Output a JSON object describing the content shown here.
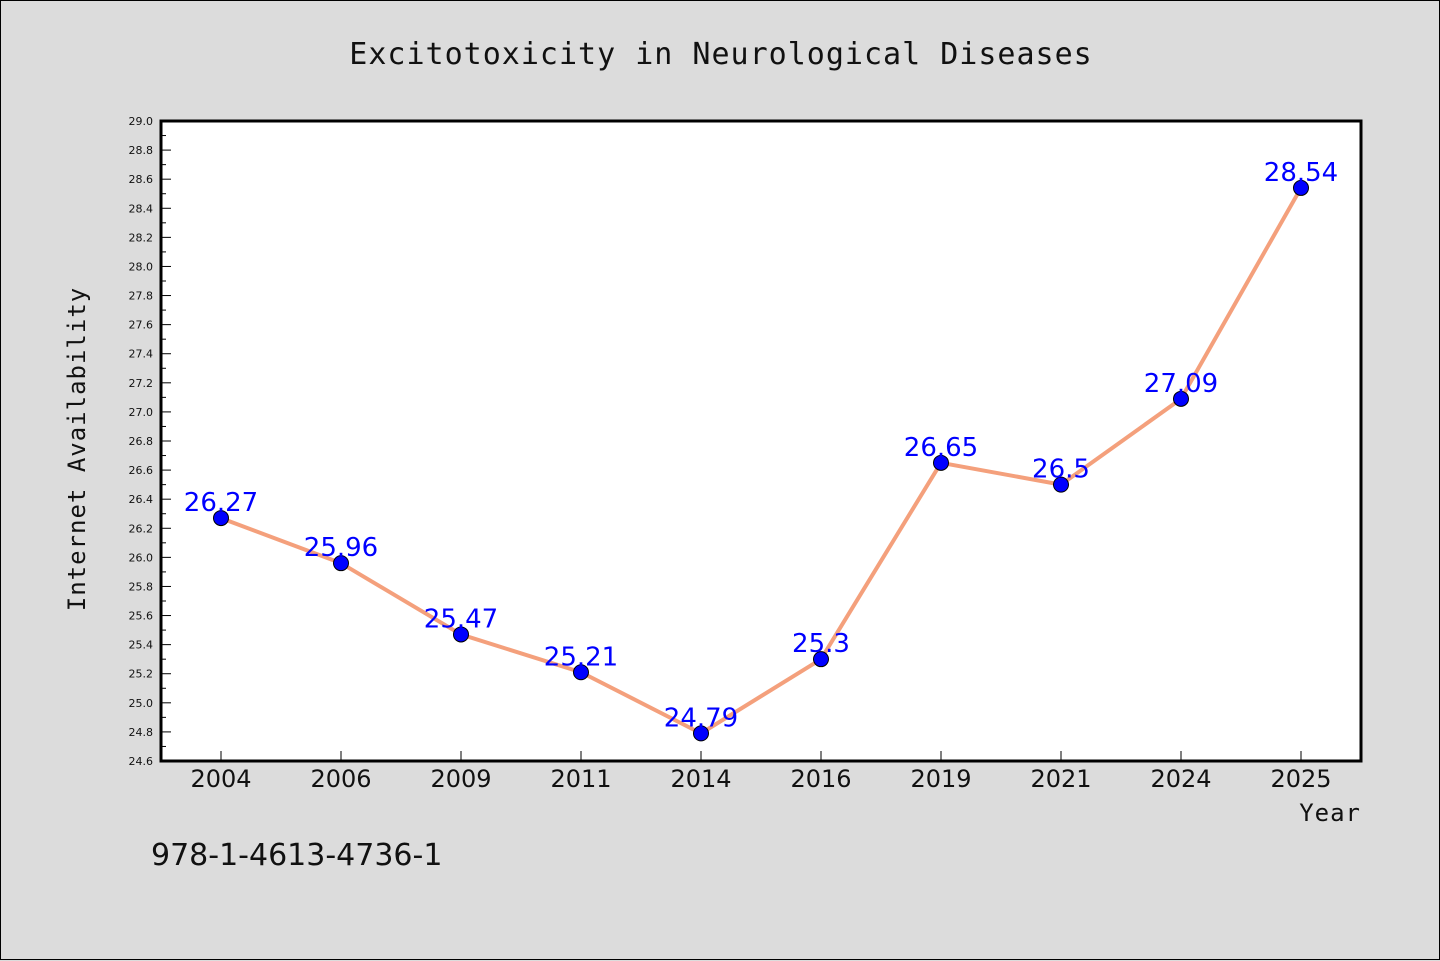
{
  "chart_data": {
    "type": "line",
    "title": "Excitotoxicity in Neurological Diseases",
    "xlabel": "Year",
    "ylabel": "Internet Availability",
    "categories": [
      "2004",
      "2006",
      "2009",
      "2011",
      "2014",
      "2016",
      "2019",
      "2021",
      "2024",
      "2025"
    ],
    "series": [
      {
        "values": [
          26.27,
          25.96,
          25.47,
          25.21,
          24.79,
          25.3,
          26.65,
          26.5,
          27.09,
          28.54
        ],
        "labels": [
          "26.27",
          "25.96",
          "25.47",
          "25.21",
          "24.79",
          "25.3",
          "26.65",
          "26.5",
          "27.09",
          "28.54"
        ],
        "line_color": "#f4a07c",
        "marker_color": "#0000ff"
      }
    ],
    "ylim": [
      24.6,
      29.0
    ],
    "yticks": [
      "24.6",
      "24.8",
      "25.0",
      "25.2",
      "25.4",
      "25.6",
      "25.8",
      "26.0",
      "26.2",
      "26.4",
      "26.6",
      "26.8",
      "27.0",
      "27.2",
      "27.4",
      "27.6",
      "27.8",
      "28.0",
      "28.2",
      "28.4",
      "28.6",
      "28.8",
      "29.0"
    ],
    "grid": false,
    "background": "#dcdcdc",
    "plot_background": "#ffffff"
  },
  "annotation": "978-1-4613-4736-1"
}
